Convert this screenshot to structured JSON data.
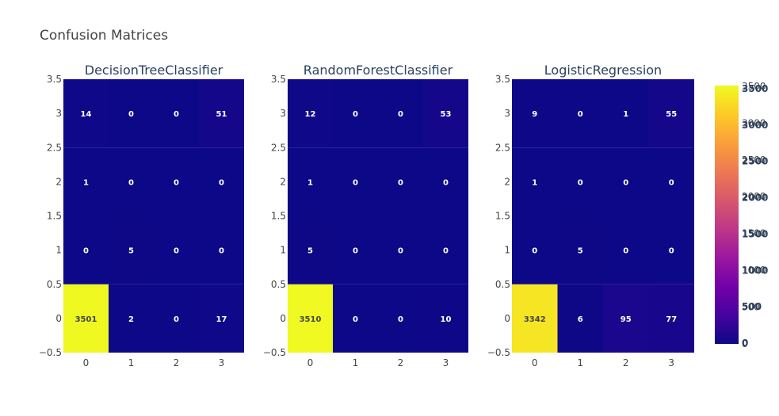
{
  "chart_data": {
    "type": "heatmap",
    "title": "Confusion Matrices",
    "colorscale": [
      "#0d0887",
      "#46039f",
      "#7201a8",
      "#9c179e",
      "#bd3786",
      "#d8576b",
      "#ed7953",
      "#fb9f3a",
      "#fdca26",
      "#f0f921"
    ],
    "zmin": 0,
    "zmax": 3510,
    "x": [
      0,
      1,
      2,
      3
    ],
    "y": [
      0,
      1,
      2,
      3
    ],
    "xrange": [
      -0.5,
      3.5
    ],
    "yrange": [
      -0.5,
      3.5
    ],
    "x_tick_labels": [
      "0",
      "1",
      "2",
      "3"
    ],
    "y_tick_labels": [
      "3.5",
      "3",
      "2.5",
      "2",
      "1.5",
      "1",
      "0.5",
      "0",
      "−0.5"
    ],
    "subplots": [
      {
        "name": "DecisionTreeClassifier",
        "z": [
          [
            3501,
            2,
            0,
            17
          ],
          [
            0,
            5,
            0,
            0
          ],
          [
            1,
            0,
            0,
            0
          ],
          [
            14,
            0,
            0,
            51
          ]
        ]
      },
      {
        "name": "RandomForestClassifier",
        "z": [
          [
            3510,
            0,
            0,
            10
          ],
          [
            5,
            0,
            0,
            0
          ],
          [
            1,
            0,
            0,
            0
          ],
          [
            12,
            0,
            0,
            53
          ]
        ]
      },
      {
        "name": "LogisticRegression",
        "z": [
          [
            3342,
            6,
            95,
            77
          ],
          [
            0,
            5,
            0,
            0
          ],
          [
            1,
            0,
            0,
            0
          ],
          [
            9,
            0,
            1,
            55
          ]
        ]
      }
    ],
    "colorbar": {
      "plain_labels": [
        "0",
        "500",
        "1000",
        "1500",
        "2000",
        "2500",
        "3000",
        "3500"
      ],
      "bold_labels": [
        "0",
        "500",
        "1000",
        "1500",
        "2000",
        "2500",
        "3000",
        "3500"
      ]
    }
  }
}
